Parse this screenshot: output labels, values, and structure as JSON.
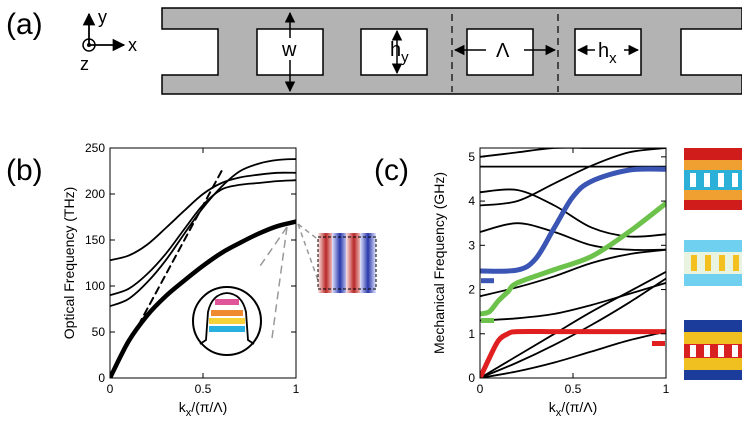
{
  "panels": {
    "a": {
      "label": "(a)",
      "axes": {
        "y": "y",
        "x": "x",
        "z": "z"
      },
      "dims": {
        "w": "w",
        "hy": "h",
        "hy_sub": "y",
        "lambda": "Λ",
        "hx": "h",
        "hx_sub": "x"
      }
    },
    "b": {
      "label": "(b)"
    },
    "c": {
      "label": "(c)"
    }
  },
  "chart_data": [
    {
      "type": "line",
      "panel": "(b)",
      "title": "",
      "xlabel": "k_x/(π/Λ)",
      "xlabel_main": "k",
      "xlabel_sub": "x",
      "xlabel_tail": "/(π/Λ)",
      "ylabel": "Optical Frequency (THz)",
      "xlim": [
        0,
        1
      ],
      "ylim": [
        0,
        250
      ],
      "xticks": [
        0,
        0.5,
        1
      ],
      "xtick_labels": [
        "0",
        "0.5",
        "1"
      ],
      "yticks": [
        0,
        50,
        100,
        150,
        200,
        250
      ],
      "ytick_labels": [
        "0",
        "50",
        "100",
        "150",
        "200",
        "250"
      ],
      "series": [
        {
          "kind": "light-line",
          "x": [
            0,
            0.6
          ],
          "y": [
            0,
            225
          ]
        },
        {
          "kind": "guided-mode",
          "x": [
            0,
            0.1,
            0.2,
            0.3,
            0.4,
            0.5,
            0.6,
            0.7,
            0.8,
            0.9,
            1.0
          ],
          "y": [
            0,
            40,
            68,
            89,
            106,
            122,
            136,
            147,
            157,
            165,
            170
          ]
        },
        {
          "kind": "band",
          "x": [
            0,
            0.1,
            0.2,
            0.3,
            0.4,
            0.5,
            0.6,
            0.7,
            0.8,
            0.9,
            1.0
          ],
          "y": [
            78,
            86,
            104,
            128,
            157,
            185,
            208,
            225,
            233,
            237,
            238
          ]
        },
        {
          "kind": "band",
          "x": [
            0,
            0.1,
            0.2,
            0.3,
            0.4,
            0.5,
            0.6,
            0.7,
            0.8,
            0.9,
            1.0
          ],
          "y": [
            90,
            97,
            113,
            135,
            162,
            188,
            205,
            210,
            212,
            214,
            215
          ]
        },
        {
          "kind": "band",
          "x": [
            0,
            0.1,
            0.2,
            0.3,
            0.4,
            0.5,
            0.6,
            0.7,
            0.8,
            0.9,
            1.0
          ],
          "y": [
            128,
            133,
            145,
            163,
            182,
            200,
            212,
            218,
            221,
            223,
            223
          ]
        }
      ]
    },
    {
      "type": "line",
      "panel": "(c)",
      "title": "",
      "xlabel": "k_x/(π/Λ)",
      "xlabel_main": "k",
      "xlabel_sub": "x",
      "xlabel_tail": "/(π/Λ)",
      "ylabel": "Mechanical Frequency (GHz)",
      "xlim": [
        0,
        1
      ],
      "ylim": [
        0,
        5.2
      ],
      "xticks": [
        0,
        0.5,
        1
      ],
      "xtick_labels": [
        "0",
        "0.5",
        "1"
      ],
      "yticks": [
        0,
        1,
        2,
        3,
        4,
        5
      ],
      "ytick_labels": [
        "0",
        "1",
        "2",
        "3",
        "4",
        "5"
      ],
      "series": [
        {
          "kind": "band",
          "x": [
            0,
            1
          ],
          "y": [
            4.78,
            4.78
          ]
        },
        {
          "kind": "band",
          "x": [
            0,
            0.2,
            0.4,
            0.6,
            0.8,
            1.0
          ],
          "y": [
            4.2,
            4.25,
            3.9,
            3.4,
            3.2,
            3.25
          ]
        },
        {
          "kind": "band",
          "x": [
            0,
            0.2,
            0.4,
            0.6,
            0.8,
            1.0
          ],
          "y": [
            3.3,
            3.5,
            3.3,
            3.0,
            2.9,
            2.9
          ]
        },
        {
          "kind": "band",
          "x": [
            0,
            0.2,
            0.4,
            0.6,
            0.8,
            1.0
          ],
          "y": [
            3.9,
            4.0,
            4.4,
            4.8,
            5.1,
            5.2
          ]
        },
        {
          "kind": "band",
          "x": [
            0,
            0.2,
            0.4,
            0.6,
            0.8,
            1.0
          ],
          "y": [
            1.85,
            2.05,
            2.3,
            2.6,
            2.8,
            2.9
          ]
        },
        {
          "kind": "band",
          "x": [
            0,
            0.2,
            0.4,
            0.6,
            0.8,
            1.0
          ],
          "y": [
            0,
            0.5,
            1.0,
            1.5,
            1.95,
            2.4
          ]
        },
        {
          "kind": "band",
          "x": [
            0,
            0.2,
            0.4,
            0.6,
            0.8,
            1.0
          ],
          "y": [
            0,
            0.35,
            0.75,
            1.2,
            1.7,
            2.25
          ]
        },
        {
          "kind": "band",
          "x": [
            0,
            0.2,
            0.4,
            0.6,
            0.8,
            1.0
          ],
          "y": [
            0,
            0.15,
            0.35,
            0.6,
            0.85,
            1.05
          ]
        },
        {
          "kind": "band",
          "x": [
            0,
            0.2,
            0.4,
            0.6,
            0.8,
            1.0
          ],
          "y": [
            1.3,
            1.35,
            1.45,
            1.65,
            1.9,
            2.15
          ]
        },
        {
          "kind": "band",
          "x": [
            0,
            0.2,
            0.4,
            0.6,
            0.8,
            1.0
          ],
          "y": [
            5.0,
            5.1,
            5.2,
            5.2,
            5.2,
            5.2
          ]
        },
        {
          "kind": "highlight",
          "color": "#3a55b4",
          "x": [
            0,
            0.2,
            0.3,
            0.4,
            0.5,
            0.6,
            0.8,
            1.0
          ],
          "y": [
            2.42,
            2.44,
            2.7,
            3.4,
            4.1,
            4.45,
            4.7,
            4.72
          ]
        },
        {
          "kind": "highlight",
          "color": "#6cc24a",
          "x": [
            0,
            0.05,
            0.1,
            0.15,
            0.2,
            0.4,
            0.6,
            0.8,
            1.0
          ],
          "y": [
            1.45,
            1.5,
            1.75,
            1.95,
            2.15,
            2.45,
            2.75,
            3.3,
            3.95
          ]
        },
        {
          "kind": "highlight",
          "color": "#e02020",
          "x": [
            0,
            0.05,
            0.1,
            0.15,
            0.2,
            0.4,
            0.6,
            0.8,
            1.0
          ],
          "y": [
            0,
            0.45,
            0.85,
            1.0,
            1.05,
            1.05,
            1.05,
            1.05,
            1.05
          ]
        }
      ]
    }
  ],
  "colors": {
    "waveguide": "#b3b3b3",
    "blue": "#3a55b4",
    "green": "#6cc24a",
    "red": "#e02020"
  }
}
